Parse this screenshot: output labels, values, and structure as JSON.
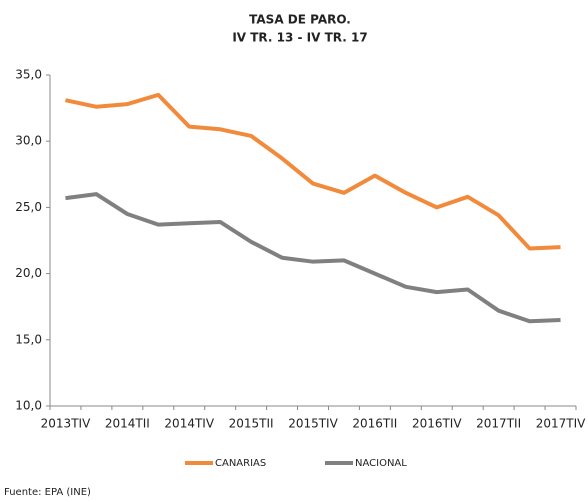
{
  "chart_data": {
    "type": "line",
    "title": "TASA DE PARO.",
    "subtitle": "IV TR. 13 - IV TR. 17",
    "categories": [
      "2013TIV",
      null,
      "2014TII",
      null,
      "2014TIV",
      null,
      "2015TII",
      null,
      "2015TIV",
      null,
      "2016TII",
      null,
      "2016TIV",
      null,
      "2017TII",
      null,
      "2017TIV"
    ],
    "series": [
      {
        "name": "CANARIAS",
        "color": "#f28a3c",
        "values": [
          33.1,
          32.6,
          32.8,
          33.5,
          31.1,
          30.9,
          30.4,
          28.7,
          26.8,
          26.1,
          27.4,
          26.1,
          25.0,
          25.8,
          24.4,
          21.9,
          22.0
        ]
      },
      {
        "name": "NACIONAL",
        "color": "#808080",
        "values": [
          25.7,
          26.0,
          24.5,
          23.7,
          23.8,
          23.9,
          22.4,
          21.2,
          20.9,
          21.0,
          20.0,
          19.0,
          18.6,
          18.8,
          17.2,
          16.4,
          16.5
        ]
      }
    ],
    "ylim": [
      10,
      35
    ],
    "yticks": [
      {
        "value": 10,
        "label": "10,0"
      },
      {
        "value": 15,
        "label": "15,0"
      },
      {
        "value": 20,
        "label": "20,0"
      },
      {
        "value": 25,
        "label": "25,0"
      },
      {
        "value": 30,
        "label": "30,0"
      },
      {
        "value": 35,
        "label": "35,0"
      }
    ],
    "grid": false,
    "legend": "bottom",
    "source": "Fuente: EPA (INE)"
  }
}
